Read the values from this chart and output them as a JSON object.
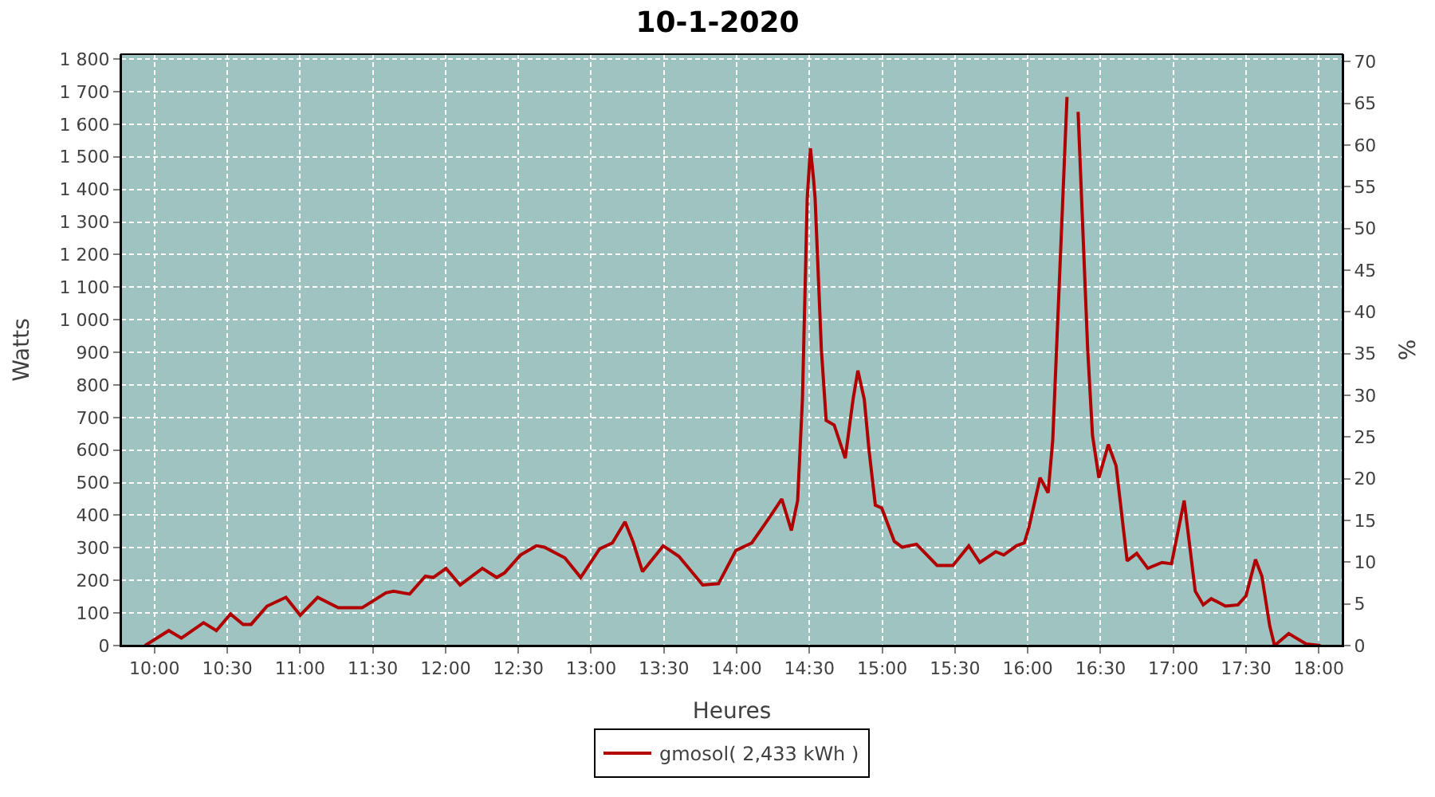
{
  "chart_data": {
    "type": "line",
    "title": "10-1-2020",
    "xlabel": "Heures",
    "ylabel": "Watts",
    "y2label": "%",
    "x": [
      9.935,
      10.098,
      10.185,
      10.337,
      10.425,
      10.522,
      10.609,
      10.664,
      10.773,
      10.903,
      11.001,
      11.121,
      11.263,
      11.426,
      11.59,
      11.643,
      11.753,
      11.861,
      11.915,
      12.003,
      12.1,
      12.253,
      12.351,
      12.405,
      12.515,
      12.623,
      12.678,
      12.82,
      12.928,
      13.059,
      13.146,
      13.233,
      13.287,
      13.353,
      13.495,
      13.603,
      13.767,
      13.875,
      13.995,
      14.104,
      14.213,
      14.31,
      14.376,
      14.419,
      14.452,
      14.485,
      14.507,
      14.528,
      14.539,
      14.582,
      14.615,
      14.67,
      14.746,
      14.8,
      14.833,
      14.877,
      14.91,
      14.953,
      14.997,
      15.083,
      15.138,
      15.236,
      15.377,
      15.486,
      15.595,
      15.671,
      15.78,
      15.835,
      15.922,
      15.976,
      16.008,
      16.085,
      16.14,
      16.172,
      16.227,
      16.27,
      16.281,
      16.335,
      16.346,
      16.412,
      16.445,
      16.489,
      16.554,
      16.607,
      16.683,
      16.749,
      16.825,
      16.923,
      16.988,
      17.075,
      17.151,
      17.206,
      17.261,
      17.359,
      17.445,
      17.5,
      17.565,
      17.609,
      17.663,
      17.696,
      17.793,
      17.913,
      18.012
    ],
    "series": [
      {
        "name": "gmosol( 2,433 kWh )",
        "color": "#b00000",
        "values": [
          0,
          46,
          23,
          70,
          46,
          97,
          65,
          65,
          121,
          148,
          93,
          148,
          116,
          116,
          162,
          167,
          158,
          213,
          209,
          237,
          186,
          237,
          209,
          223,
          278,
          306,
          302,
          269,
          209,
          297,
          315,
          380,
          320,
          227,
          306,
          274,
          186,
          190,
          292,
          315,
          385,
          450,
          353,
          445,
          756,
          1373,
          1526,
          1433,
          1373,
          909,
          691,
          677,
          575,
          756,
          844,
          756,
          598,
          431,
          422,
          320,
          302,
          311,
          246,
          246,
          306,
          255,
          288,
          278,
          306,
          315,
          362,
          515,
          469,
          631,
          1220,
          1684,
          null,
          null,
          1638,
          909,
          645,
          515,
          617,
          552,
          260,
          283,
          237,
          255,
          251,
          445,
          167,
          125,
          144,
          121,
          125,
          153,
          264,
          213,
          60,
          0,
          37,
          5,
          0
        ]
      }
    ],
    "xlim": [
      9.771,
      18.163
    ],
    "xticks": [
      {
        "value": 10,
        "label": "10:00"
      },
      {
        "value": 10.5,
        "label": "10:30"
      },
      {
        "value": 11,
        "label": "11:00"
      },
      {
        "value": 11.5,
        "label": "11:30"
      },
      {
        "value": 12,
        "label": "12:00"
      },
      {
        "value": 12.5,
        "label": "12:30"
      },
      {
        "value": 13,
        "label": "13:00"
      },
      {
        "value": 13.5,
        "label": "13:30"
      },
      {
        "value": 14,
        "label": "14:00"
      },
      {
        "value": 14.5,
        "label": "14:30"
      },
      {
        "value": 15,
        "label": "15:00"
      },
      {
        "value": 15.5,
        "label": "15:30"
      },
      {
        "value": 16,
        "label": "16:00"
      },
      {
        "value": 16.5,
        "label": "16:30"
      },
      {
        "value": 17,
        "label": "17:00"
      },
      {
        "value": 17.5,
        "label": "17:30"
      },
      {
        "value": 18,
        "label": "18:00"
      }
    ],
    "ylim": [
      0,
      1815
    ],
    "yticks": [
      {
        "value": 0,
        "label": "0"
      },
      {
        "value": 100,
        "label": "100"
      },
      {
        "value": 200,
        "label": "200"
      },
      {
        "value": 300,
        "label": "300"
      },
      {
        "value": 400,
        "label": "400"
      },
      {
        "value": 500,
        "label": "500"
      },
      {
        "value": 600,
        "label": "600"
      },
      {
        "value": 700,
        "label": "700"
      },
      {
        "value": 800,
        "label": "800"
      },
      {
        "value": 900,
        "label": "900"
      },
      {
        "value": 1000,
        "label": "1 000"
      },
      {
        "value": 1100,
        "label": "1 100"
      },
      {
        "value": 1200,
        "label": "1 200"
      },
      {
        "value": 1300,
        "label": "1 300"
      },
      {
        "value": 1400,
        "label": "1 400"
      },
      {
        "value": 1500,
        "label": "1 500"
      },
      {
        "value": 1600,
        "label": "1 600"
      },
      {
        "value": 1700,
        "label": "1 700"
      },
      {
        "value": 1800,
        "label": "1 800"
      }
    ],
    "y2lim": [
      0,
      70.9
    ],
    "y2ticks": [
      0,
      5,
      10,
      15,
      20,
      25,
      30,
      35,
      40,
      45,
      50,
      55,
      60,
      65,
      70
    ],
    "grid": true,
    "legend": "bottom",
    "marker": "none",
    "line_style": "solid"
  }
}
